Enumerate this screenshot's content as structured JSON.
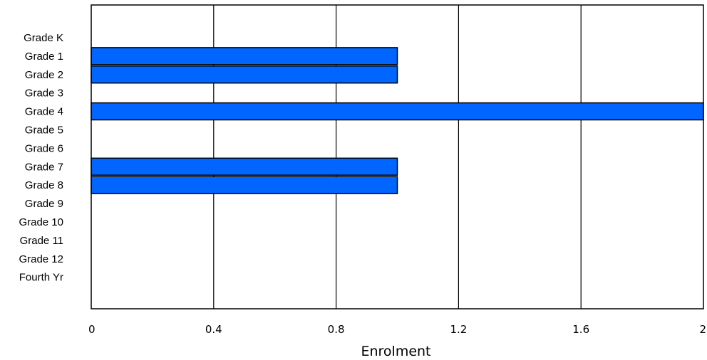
{
  "chart_data": {
    "type": "bar",
    "orientation": "horizontal",
    "categories": [
      "Grade K",
      "Grade 1",
      "Grade 2",
      "Grade 3",
      "Grade 4",
      "Grade 5",
      "Grade 6",
      "Grade 7",
      "Grade 8",
      "Grade 9",
      "Grade 10",
      "Grade 11",
      "Grade 12",
      "Fourth Yr"
    ],
    "values": [
      0,
      1,
      1,
      0,
      2,
      0,
      0,
      1,
      1,
      0,
      0,
      0,
      0,
      0
    ],
    "xlabel": "Enrolment",
    "ylabel": "",
    "title": "",
    "xlim": [
      0,
      2
    ],
    "xticks": [
      "0",
      "0.4",
      "0.8",
      "1.2",
      "1.6",
      "2"
    ],
    "grid": "vertical",
    "legend": "none",
    "bar_color": "#0066ff",
    "bar_stroke": "#000000"
  }
}
